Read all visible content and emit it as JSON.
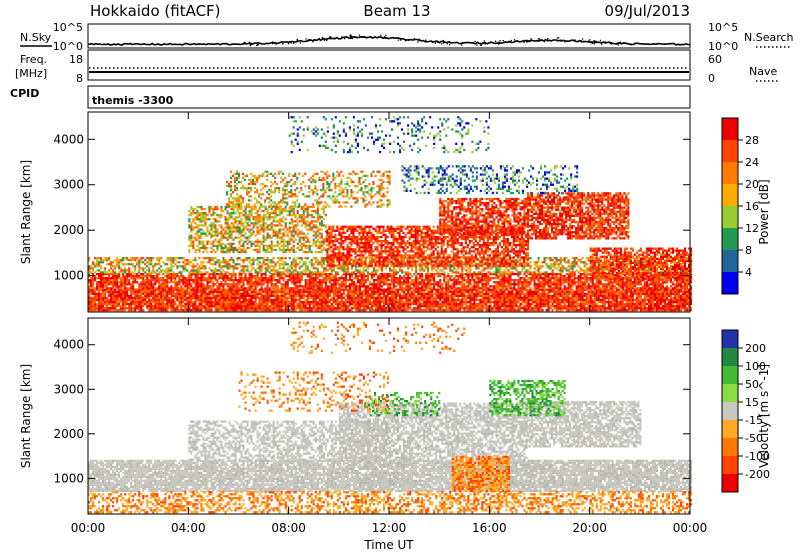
{
  "header": {
    "title": "Hokkaido (fitACF)",
    "beam": "Beam 13",
    "date": "09/Jul/2013"
  },
  "noise_panel": {
    "left_label": "N.Sky",
    "right_label": "N.Search",
    "left_ticks": [
      "10^5",
      "10^0"
    ],
    "right_ticks": [
      "10^5",
      "10^0"
    ]
  },
  "freq_panel": {
    "left_label": "Freq.",
    "left_unit": "[MHz]",
    "right_label": "Nave",
    "left_ticks": [
      "18",
      "8"
    ],
    "right_ticks": [
      "60",
      "0"
    ]
  },
  "cpid_panel": {
    "label": "CPID",
    "value": "themis -3300"
  },
  "x_axis": {
    "label": "Time UT",
    "ticks": [
      "00:00",
      "04:00",
      "08:00",
      "12:00",
      "16:00",
      "20:00",
      "00:00"
    ]
  },
  "chart_data": [
    {
      "type": "heatmap",
      "name": "power",
      "ylabel": "Slant Range [km]",
      "yticks": [
        1000,
        2000,
        3000,
        4000
      ],
      "ylim": [
        200,
        4600
      ],
      "xlim": [
        0,
        24
      ],
      "colorbar": {
        "label": "Power [dB]",
        "ticks": [
          "28",
          "24",
          "20",
          "16",
          "12",
          "8",
          "4"
        ],
        "colors": [
          "#ee0000",
          "#ff4400",
          "#ff7a00",
          "#ffaa00",
          "#99cc33",
          "#229955",
          "#226699",
          "#0000ee"
        ]
      },
      "regions": [
        {
          "t0": 0.0,
          "t1": 24.0,
          "r0": 220,
          "r1": 700,
          "level": "high",
          "density": 0.92
        },
        {
          "t0": 0.0,
          "t1": 24.0,
          "r0": 700,
          "r1": 1050,
          "level": "high",
          "density": 0.78
        },
        {
          "t0": 0.0,
          "t1": 24.0,
          "r0": 1050,
          "r1": 1400,
          "level": "mid",
          "density": 0.55
        },
        {
          "t0": 4.0,
          "t1": 9.5,
          "r0": 1500,
          "r1": 2500,
          "level": "mid",
          "density": 0.55
        },
        {
          "t0": 5.5,
          "t1": 12.0,
          "r0": 2500,
          "r1": 3300,
          "level": "mid",
          "density": 0.35
        },
        {
          "t0": 9.5,
          "t1": 17.5,
          "r0": 1200,
          "r1": 2100,
          "level": "high",
          "density": 0.7
        },
        {
          "t0": 14.0,
          "t1": 17.5,
          "r0": 1900,
          "r1": 2700,
          "level": "high",
          "density": 0.7
        },
        {
          "t0": 17.5,
          "t1": 21.5,
          "r0": 1800,
          "r1": 2800,
          "level": "high",
          "density": 0.75
        },
        {
          "t0": 20.0,
          "t1": 24.0,
          "r0": 900,
          "r1": 1600,
          "level": "high",
          "density": 0.7
        },
        {
          "t0": 12.5,
          "t1": 19.5,
          "r0": 2800,
          "r1": 3400,
          "level": "low",
          "density": 0.3
        },
        {
          "t0": 8.0,
          "t1": 16.0,
          "r0": 3700,
          "r1": 4500,
          "level": "low",
          "density": 0.15
        }
      ]
    },
    {
      "type": "heatmap",
      "name": "velocity",
      "ylabel": "Slant Range [km]",
      "yticks": [
        1000,
        2000,
        3000,
        4000
      ],
      "ylim": [
        200,
        4600
      ],
      "xlim": [
        0,
        24
      ],
      "colorbar": {
        "label": "Velocity [m s^-1]",
        "ticks": [
          "200",
          "100",
          "50",
          "15",
          "-15",
          "-50",
          "-100",
          "-200"
        ],
        "colors": [
          "#2233aa",
          "#228844",
          "#44bb33",
          "#88dd44",
          "#c8c8c0",
          "#ffaa22",
          "#ff7700",
          "#ff4400",
          "#ee0000"
        ]
      },
      "regions": [
        {
          "t0": 0.0,
          "t1": 24.0,
          "r0": 700,
          "r1": 1400,
          "level": "gray",
          "density": 0.85
        },
        {
          "t0": 4.0,
          "t1": 12.0,
          "r0": 1400,
          "r1": 2300,
          "level": "gray",
          "density": 0.55
        },
        {
          "t0": 10.0,
          "t1": 17.5,
          "r0": 1400,
          "r1": 2700,
          "level": "gray",
          "density": 0.65
        },
        {
          "t0": 17.5,
          "t1": 22.0,
          "r0": 1700,
          "r1": 2700,
          "level": "gray",
          "density": 0.7
        },
        {
          "t0": 0.0,
          "t1": 24.0,
          "r0": 220,
          "r1": 700,
          "level": "orange",
          "density": 0.45
        },
        {
          "t0": 14.5,
          "t1": 16.8,
          "r0": 700,
          "r1": 1500,
          "level": "orange",
          "density": 0.75
        },
        {
          "t0": 16.0,
          "t1": 19.0,
          "r0": 2400,
          "r1": 3200,
          "level": "green",
          "density": 0.55
        },
        {
          "t0": 11.0,
          "t1": 14.0,
          "r0": 2400,
          "r1": 2900,
          "level": "green",
          "density": 0.35
        },
        {
          "t0": 6.0,
          "t1": 12.0,
          "r0": 2500,
          "r1": 3400,
          "level": "orange",
          "density": 0.18
        },
        {
          "t0": 8.0,
          "t1": 15.0,
          "r0": 3800,
          "r1": 4500,
          "level": "orange",
          "density": 0.12
        }
      ]
    }
  ]
}
